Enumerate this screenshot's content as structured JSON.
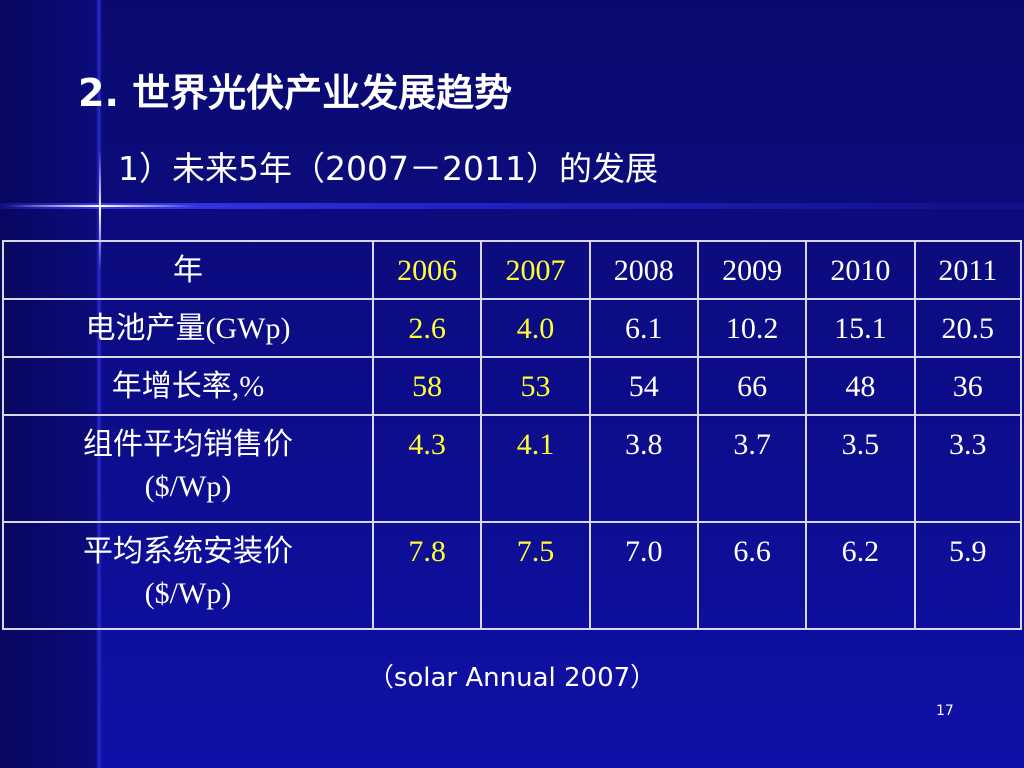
{
  "slide": {
    "title": "2. 世界光伏产业发展趋势",
    "subtitle": "1）未来5年（2007－2011）的发展",
    "source": "（solar Annual 2007）",
    "page_number": "17",
    "colors": {
      "background": "#0c0c86",
      "text": "#ffffff",
      "highlight": "#ffff33",
      "border": "#d8d8e8"
    }
  },
  "table": {
    "header": {
      "label": "年",
      "years": [
        "2006",
        "2007",
        "2008",
        "2009",
        "2010",
        "2011"
      ]
    },
    "rows": [
      {
        "label_lines": [
          "电池产量(GWp)"
        ],
        "values": [
          "2.6",
          "4.0",
          "6.1",
          "10.2",
          "15.1",
          "20.5"
        ]
      },
      {
        "label_lines": [
          "年增长率,%"
        ],
        "values": [
          "58",
          "53",
          "54",
          "66",
          "48",
          "36"
        ]
      },
      {
        "label_lines": [
          "组件平均销售价",
          "($/Wp)"
        ],
        "values": [
          "4.3",
          "4.1",
          "3.8",
          "3.7",
          "3.5",
          "3.3"
        ]
      },
      {
        "label_lines": [
          "平均系统安装价",
          "($/Wp)"
        ],
        "values": [
          "7.8",
          "7.5",
          "7.0",
          "6.6",
          "6.2",
          "5.9"
        ]
      }
    ]
  }
}
